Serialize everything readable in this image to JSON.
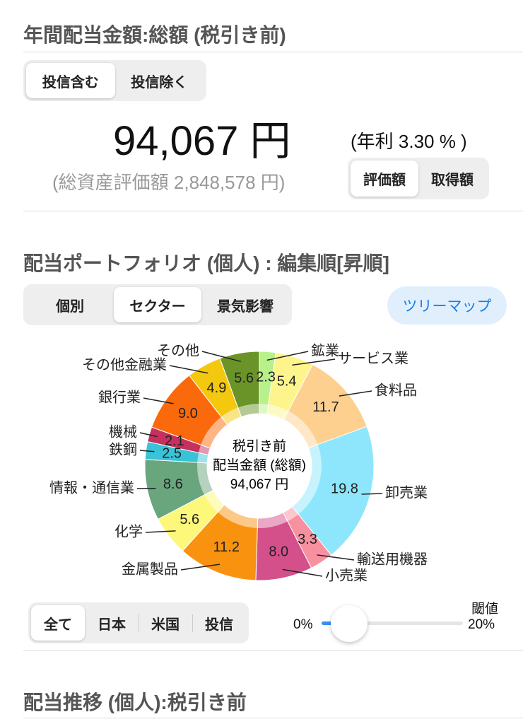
{
  "dividend": {
    "title": "年間配当金額:総額 (税引き前)",
    "toggle": {
      "options": [
        "投信含む",
        "投信除く"
      ],
      "selected": 0
    },
    "amount": "94,067 円",
    "yield": "(年利 3.30 % )",
    "total_assets": "(総資産評価額 2,848,578 円)",
    "basis": {
      "options": [
        "評価額",
        "取得額"
      ],
      "selected": 0
    }
  },
  "portfolio": {
    "title": "配当ポートフォリオ (個人) : 編集順[昇順]",
    "view": {
      "options": [
        "個別",
        "セクター",
        "景気影響"
      ],
      "selected": 1
    },
    "treemap_button": "ツリーマップ",
    "center_text": [
      "税引き前",
      "配当金額 (総額)",
      "94,067 円"
    ],
    "region": {
      "options": [
        "全て",
        "日本",
        "米国",
        "投信"
      ],
      "selected": 0
    },
    "threshold": {
      "label": "閾値",
      "min": "0%",
      "max": "20%"
    }
  },
  "chart_data": {
    "type": "donut",
    "categories": [
      "鉱業",
      "サービス業",
      "食料品",
      "卸売業",
      "輸送用機器",
      "小売業",
      "金属製品",
      "化学",
      "情報・通信業",
      "鉄鋼",
      "機械",
      "銀行業",
      "その他金融業",
      "その他"
    ],
    "values": [
      2.3,
      5.4,
      11.7,
      19.8,
      3.3,
      8.0,
      11.2,
      5.6,
      8.6,
      2.5,
      2.1,
      9.0,
      4.9,
      5.6
    ],
    "value_labels": [
      "2.3",
      "5.4",
      "11.7",
      "19.8",
      "3.3",
      "8.0",
      "11.2",
      "5.6",
      "8.6",
      "2.5",
      "2.1",
      "9.0",
      "4.9",
      "5.6"
    ],
    "colors": [
      "#b8f08a",
      "#fdf58c",
      "#fdd08f",
      "#8de6fb",
      "#f7919f",
      "#d4508a",
      "#f9920f",
      "#fdf77a",
      "#69a57d",
      "#38c3d6",
      "#c6305f",
      "#fa6a0c",
      "#f5c810",
      "#6b9428"
    ]
  },
  "history": {
    "title": "配当推移 (個人):税引き前"
  }
}
